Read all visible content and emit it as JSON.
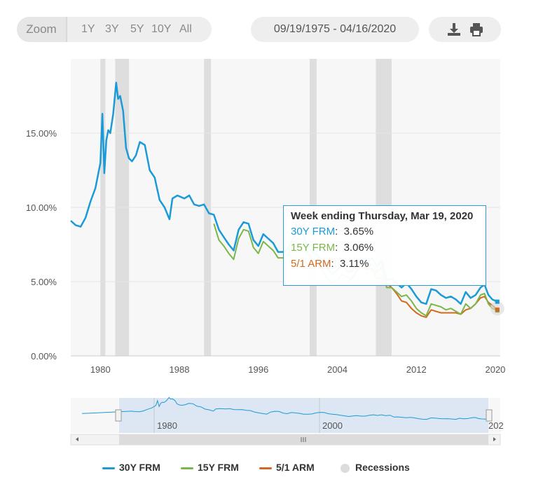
{
  "toolbar": {
    "zoom_label": "Zoom",
    "zoom_buttons": [
      "1Y",
      "3Y",
      "5Y",
      "10Y",
      "All"
    ],
    "date_range": "09/19/1975 - 04/16/2020",
    "download_icon": "download-icon",
    "print_icon": "print-icon"
  },
  "tooltip": {
    "title": "Week ending Thursday, Mar 19, 2020",
    "rows": [
      {
        "name": "30Y FRM",
        "value": "3.65%",
        "color": "#1a9bd7"
      },
      {
        "name": "15Y FRM",
        "value": "3.06%",
        "color": "#7ab648"
      },
      {
        "name": "5/1 ARM",
        "value": "3.11%",
        "color": "#d2691e"
      }
    ]
  },
  "legend": [
    "30Y FRM",
    "15Y FRM",
    "5/1 ARM",
    "Recessions"
  ],
  "navigator": {
    "tick_labels": [
      "1980",
      "2000",
      "202"
    ]
  },
  "colors": {
    "frm30": "#1a9bd7",
    "frm15": "#7ab648",
    "arm51": "#d2691e",
    "recession": "#dedede",
    "plot_bg": "#f7f7f7"
  },
  "chart_data": {
    "type": "line",
    "xlim": [
      1977.0,
      2020.5
    ],
    "ylim": [
      0,
      20
    ],
    "y_ticks": [
      0,
      5,
      10,
      15
    ],
    "y_tick_labels": [
      "0.00%",
      "5.00%",
      "10.00%",
      "15.00%"
    ],
    "x_ticks": [
      1980,
      1988,
      1996,
      2004,
      2012,
      2020
    ],
    "x_tick_labels": [
      "1980",
      "1988",
      "1996",
      "2004",
      "2012",
      "2020"
    ],
    "recessions": [
      [
        1980.0,
        1980.5
      ],
      [
        1981.5,
        1982.9
      ],
      [
        1990.5,
        1991.2
      ],
      [
        2001.2,
        2001.9
      ],
      [
        2007.9,
        2009.5
      ]
    ],
    "series": [
      {
        "name": "30Y FRM",
        "color": "#1a9bd7",
        "x": [
          1977.0,
          1977.5,
          1978.0,
          1978.5,
          1979.0,
          1979.5,
          1980.0,
          1980.2,
          1980.4,
          1980.6,
          1980.8,
          1981.0,
          1981.3,
          1981.6,
          1981.8,
          1982.0,
          1982.3,
          1982.6,
          1982.9,
          1983.2,
          1983.6,
          1984.0,
          1984.5,
          1985.0,
          1985.5,
          1986.0,
          1986.5,
          1987.0,
          1987.3,
          1987.8,
          1988.5,
          1989.0,
          1989.5,
          1990.0,
          1990.5,
          1991.0,
          1991.5,
          1992.0,
          1992.5,
          1993.0,
          1993.5,
          1994.0,
          1994.5,
          1995.0,
          1995.5,
          1996.0,
          1996.5,
          1997.0,
          1997.5,
          1998.0,
          1998.5,
          1999.0,
          1999.5,
          2000.0,
          2000.5,
          2001.0,
          2001.5,
          2002.0,
          2002.5,
          2003.0,
          2003.5,
          2004.0,
          2004.5,
          2005.0,
          2005.5,
          2006.0,
          2006.5,
          2007.0,
          2007.5,
          2008.0,
          2008.5,
          2009.0,
          2009.5,
          2010.0,
          2010.5,
          2011.0,
          2011.5,
          2012.0,
          2012.5,
          2013.0,
          2013.5,
          2014.0,
          2014.5,
          2015.0,
          2015.5,
          2016.0,
          2016.5,
          2017.0,
          2017.5,
          2018.0,
          2018.5,
          2018.9,
          2019.3,
          2019.7,
          2020.2
        ],
        "y": [
          9.1,
          8.8,
          8.7,
          9.3,
          10.4,
          11.3,
          13.0,
          16.3,
          12.3,
          14.5,
          15.2,
          15.0,
          16.3,
          18.4,
          17.3,
          17.5,
          16.5,
          14.0,
          13.3,
          13.1,
          13.5,
          14.4,
          14.2,
          12.5,
          12.0,
          10.5,
          10.0,
          9.2,
          10.6,
          10.8,
          10.6,
          10.8,
          10.2,
          10.1,
          10.2,
          9.6,
          9.5,
          8.5,
          8.0,
          7.5,
          7.1,
          8.5,
          9.0,
          8.9,
          7.8,
          7.4,
          8.2,
          7.9,
          7.6,
          7.0,
          7.0,
          7.2,
          7.9,
          8.3,
          8.2,
          7.4,
          7.0,
          6.8,
          6.3,
          5.9,
          5.5,
          5.8,
          6.1,
          5.7,
          5.7,
          6.3,
          6.6,
          6.2,
          6.6,
          6.0,
          6.4,
          5.1,
          5.2,
          4.9,
          4.6,
          4.9,
          4.5,
          4.0,
          3.6,
          3.5,
          4.5,
          4.4,
          4.1,
          3.9,
          4.0,
          3.8,
          3.5,
          4.3,
          3.9,
          4.1,
          4.6,
          4.8,
          4.1,
          3.8,
          3.65
        ]
      },
      {
        "name": "15Y FRM",
        "color": "#7ab648",
        "x": [
          1991.5,
          1992.0,
          1992.5,
          1993.0,
          1993.5,
          1994.0,
          1994.5,
          1995.0,
          1995.5,
          1996.0,
          1996.5,
          1997.0,
          1997.5,
          1998.0,
          1998.5,
          1999.0,
          1999.5,
          2000.0,
          2000.5,
          2001.0,
          2001.5,
          2002.0,
          2002.5,
          2003.0,
          2003.5,
          2004.0,
          2004.5,
          2005.0,
          2005.5,
          2006.0,
          2006.5,
          2007.0,
          2007.5,
          2008.0,
          2008.5,
          2009.0,
          2009.5,
          2010.0,
          2010.5,
          2011.0,
          2011.5,
          2012.0,
          2012.5,
          2013.0,
          2013.5,
          2014.0,
          2014.5,
          2015.0,
          2015.5,
          2016.0,
          2016.5,
          2017.0,
          2017.5,
          2018.0,
          2018.5,
          2018.9,
          2019.3,
          2019.7,
          2020.2
        ],
        "y": [
          8.9,
          7.8,
          7.4,
          6.9,
          6.5,
          7.9,
          8.5,
          8.4,
          7.3,
          6.9,
          7.7,
          7.4,
          7.1,
          6.6,
          6.6,
          6.8,
          7.5,
          7.9,
          7.8,
          6.9,
          6.5,
          6.2,
          5.7,
          5.2,
          4.9,
          5.1,
          5.5,
          5.3,
          5.2,
          5.9,
          6.2,
          5.9,
          6.2,
          5.6,
          6.0,
          4.6,
          4.6,
          4.3,
          4.0,
          4.1,
          3.7,
          3.2,
          2.9,
          2.7,
          3.5,
          3.4,
          3.3,
          3.1,
          3.2,
          3.0,
          2.8,
          3.5,
          3.2,
          3.5,
          4.1,
          4.2,
          3.5,
          3.2,
          3.06
        ]
      },
      {
        "name": "5/1 ARM",
        "color": "#d2691e",
        "x": [
          2005.0,
          2005.5,
          2006.0,
          2006.5,
          2007.0,
          2007.5,
          2008.0,
          2008.5,
          2009.0,
          2009.5,
          2010.0,
          2010.5,
          2011.0,
          2011.5,
          2012.0,
          2012.5,
          2013.0,
          2013.5,
          2014.0,
          2014.5,
          2015.0,
          2015.5,
          2016.0,
          2016.5,
          2017.0,
          2017.5,
          2018.0,
          2018.5,
          2018.9,
          2019.3,
          2019.7,
          2020.2
        ],
        "y": [
          5.0,
          5.2,
          5.7,
          6.1,
          5.8,
          5.9,
          5.2,
          5.3,
          4.9,
          4.6,
          4.2,
          3.7,
          3.6,
          3.2,
          2.9,
          2.7,
          2.6,
          3.1,
          3.0,
          2.9,
          2.9,
          2.9,
          2.9,
          2.8,
          3.1,
          3.2,
          3.5,
          3.9,
          4.0,
          3.6,
          3.4,
          3.11
        ]
      }
    ]
  }
}
